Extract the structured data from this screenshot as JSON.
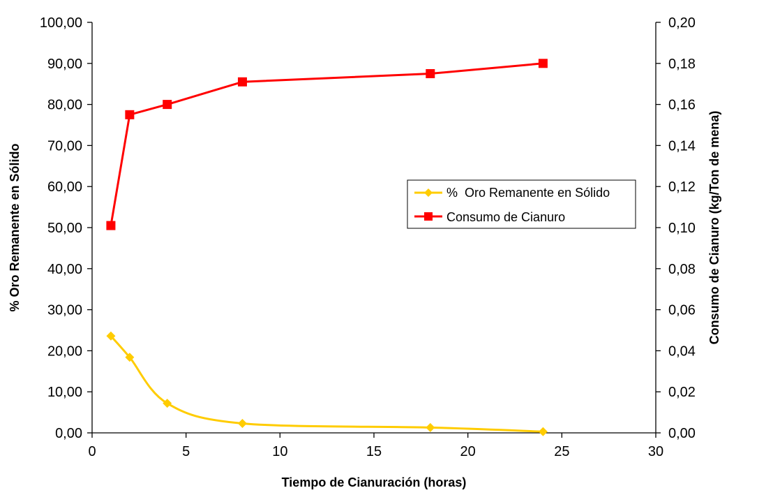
{
  "chart_data": {
    "type": "line",
    "title": "",
    "xlabel": "Tiempo de Cianuración (horas)",
    "ylabel_left": "%  Oro Remanente en Sólido",
    "ylabel_right": "Consumo de Cianuro (kg/Ton de mena)",
    "xlim": [
      0,
      30
    ],
    "ylim_left": [
      0,
      100
    ],
    "ylim_right": [
      0,
      0.2
    ],
    "x_ticks": [
      "0",
      "5",
      "10",
      "15",
      "20",
      "25",
      "30"
    ],
    "y_left_ticks": [
      "0,00",
      "10,00",
      "20,00",
      "30,00",
      "40,00",
      "50,00",
      "60,00",
      "70,00",
      "80,00",
      "90,00",
      "100,00"
    ],
    "y_right_ticks": [
      "0,00",
      "0,02",
      "0,04",
      "0,06",
      "0,08",
      "0,10",
      "0,12",
      "0,14",
      "0,16",
      "0,18",
      "0,20"
    ],
    "grid": false,
    "legend_position": "center-right",
    "series": [
      {
        "name": "%  Oro Remanente en Sólido",
        "axis": "left",
        "color": "#FFCC00",
        "marker": "diamond",
        "smooth": true,
        "x": [
          1,
          2,
          4,
          8,
          18,
          24
        ],
        "y": [
          23.6,
          18.4,
          7.2,
          2.3,
          1.3,
          0.3
        ]
      },
      {
        "name": "Consumo de Cianuro",
        "axis": "right",
        "color": "#FF0000",
        "marker": "square",
        "smooth": false,
        "x": [
          1,
          2,
          4,
          8,
          18,
          24
        ],
        "y": [
          0.101,
          0.155,
          0.16,
          0.171,
          0.175,
          0.18
        ]
      }
    ]
  }
}
